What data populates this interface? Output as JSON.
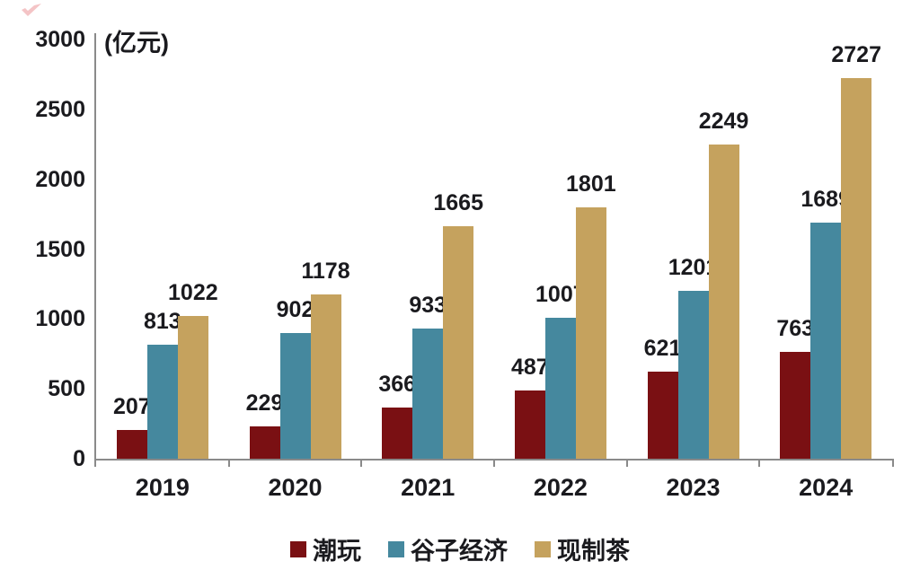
{
  "unit_label": "(亿元)",
  "colors": {
    "axis": "#8a8a8a",
    "text": "#1a1a1e",
    "watermark": "#e05a5e"
  },
  "chart_data": {
    "type": "bar",
    "title": "",
    "unit": "(亿元)",
    "categories": [
      "2019",
      "2020",
      "2021",
      "2022",
      "2023",
      "2024"
    ],
    "series": [
      {
        "name": "潮玩",
        "color": "#7a1013",
        "values": [
          207,
          229,
          366,
          487,
          621,
          763
        ]
      },
      {
        "name": "谷子经济",
        "color": "#45889e",
        "values": [
          813,
          902,
          933,
          1007,
          1201,
          1689
        ]
      },
      {
        "name": "现制茶",
        "color": "#c5a25e",
        "values": [
          1022,
          1178,
          1665,
          1801,
          2249,
          2727
        ]
      }
    ],
    "ylim": [
      0,
      3000
    ],
    "yticks": [
      0,
      500,
      1000,
      1500,
      2000,
      2500,
      3000
    ],
    "grid": false,
    "data_labels": true,
    "legend_position": "bottom"
  }
}
